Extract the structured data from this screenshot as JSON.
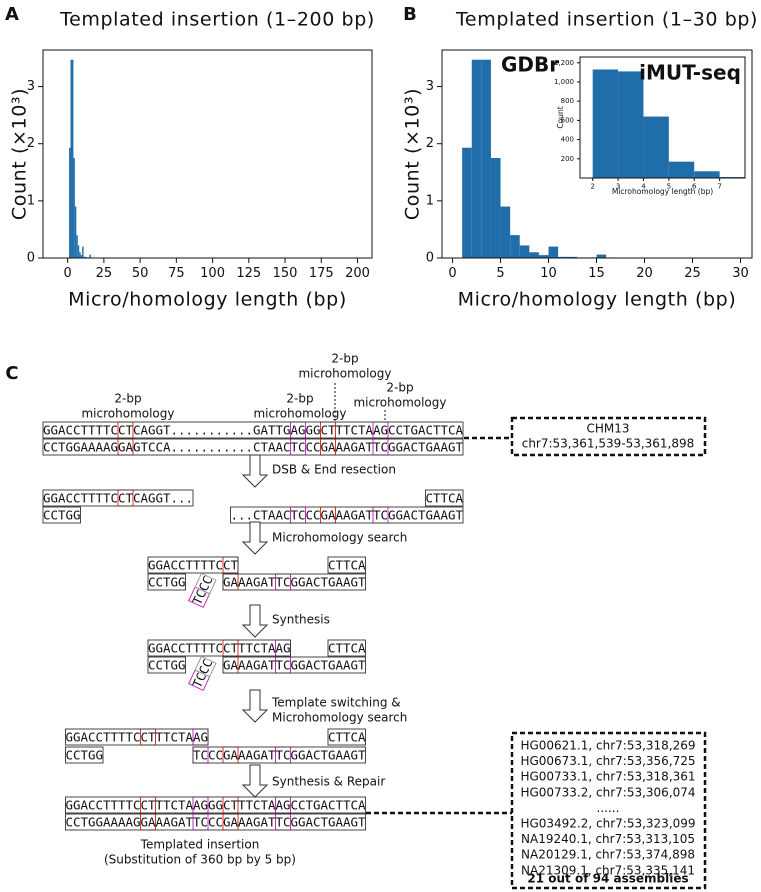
{
  "chart_data": [
    {
      "type": "histogram",
      "panel_label": "A",
      "title": "Templated insertion (1–200 bp)",
      "x_label": "Micro/homology length (bp)",
      "y_label": "Count (×10³)",
      "bins": [
        1,
        2,
        3,
        4,
        5,
        6,
        7,
        8,
        9,
        10,
        11,
        12,
        13,
        14,
        15,
        16,
        17
      ],
      "values": [
        1.93,
        3.47,
        3.47,
        1.75,
        0.9,
        0.4,
        0.22,
        0.1,
        0.05,
        0.2,
        0.02,
        0.02,
        0.01,
        0.01,
        0.06,
        0.01
      ],
      "color": "#1f6eaa",
      "xlim": [
        -17,
        210
      ],
      "ylim": [
        0,
        3.64
      ],
      "xticks": [
        0,
        25,
        50,
        75,
        100,
        125,
        150,
        175,
        200
      ],
      "yticks": [
        0,
        1,
        2,
        3
      ]
    },
    {
      "type": "histogram",
      "panel_label": "B",
      "title": "Templated insertion (1–30 bp)",
      "x_label": "Micro/homology length (bp)",
      "y_label": "Count (×10³)",
      "annotation": "GDBr",
      "bins": [
        1,
        2,
        3,
        4,
        5,
        6,
        7,
        8,
        9,
        10,
        11,
        12,
        13,
        14,
        15,
        16,
        17
      ],
      "values": [
        1.93,
        3.47,
        3.47,
        1.75,
        0.9,
        0.4,
        0.22,
        0.1,
        0.05,
        0.2,
        0.02,
        0.02,
        0.01,
        0.01,
        0.06,
        0.01
      ],
      "color": "#1f6eaa",
      "xlim": [
        -1.1,
        31.2
      ],
      "ylim": [
        0,
        3.64
      ],
      "xticks": [
        0,
        5,
        10,
        15,
        20,
        25,
        30
      ],
      "yticks": [
        0,
        1,
        2,
        3
      ]
    },
    {
      "type": "histogram",
      "title": "iMUT-seq",
      "x_label": "Microhomology length (bp)",
      "y_label": "Count",
      "bins": [
        2,
        3,
        4,
        5,
        6,
        7,
        8
      ],
      "values": [
        1130,
        1110,
        640,
        170,
        70,
        10
      ],
      "color": "#1f6eaa",
      "xlim": [
        1.5,
        8
      ],
      "ylim": [
        0,
        1260
      ],
      "xticks": [
        2,
        3,
        4,
        5,
        6,
        7
      ],
      "yticks": [
        200,
        400,
        600,
        800,
        {
          "value": 1000,
          "label": "1,000"
        },
        {
          "value": 1200,
          "label": "1,200"
        }
      ]
    }
  ],
  "diagram": {
    "panel_label": "C",
    "annotations": [
      {
        "lines": [
          "2-bp",
          "microhomology"
        ]
      },
      {
        "lines": [
          "2-bp",
          "microhomology"
        ]
      },
      {
        "lines": [
          "2-bp",
          "microhomology"
        ]
      },
      {
        "lines": [
          "2-bp",
          "microhomology"
        ]
      }
    ],
    "strands": [
      [
        {
          "text": "GGACCTTTTC",
          "color": "#111111"
        },
        {
          "text": "CT",
          "color": "#e0302a",
          "boxed": true
        },
        {
          "text": "CAGGT...........GATTG",
          "color": "#9a9a9a"
        },
        {
          "text": "AG",
          "color": "#c829c8",
          "boxed": true
        },
        {
          "text": "GG",
          "color": "#9a9a9a"
        },
        {
          "text": "CT",
          "color": "#e0302a",
          "boxed": true
        },
        {
          "text": "TTCTA",
          "color": "#1f8fd0"
        },
        {
          "text": "AG",
          "color": "#c829c8",
          "boxed": true
        },
        {
          "text": "CCTGACTTCA",
          "color": "#111111"
        }
      ],
      [
        {
          "text": "CCTGGAAAAG",
          "color": "#111111"
        },
        {
          "text": "GA",
          "color": "#e0302a",
          "boxed": true
        },
        {
          "text": "GTCCA...........CTAAC",
          "color": "#9a9a9a"
        },
        {
          "text": "TC",
          "color": "#c829c8",
          "boxed": true
        },
        {
          "text": "CC",
          "color": "#9a9a9a"
        },
        {
          "text": "GA",
          "color": "#e0302a",
          "boxed": true
        },
        {
          "text": "AAGAT",
          "color": "#1f8fd0"
        },
        {
          "text": "TC",
          "color": "#c829c8",
          "boxed": true
        },
        {
          "text": "GGACTGAAGT",
          "color": "#111111"
        }
      ],
      [
        {
          "text": "GGACCTTTTC",
          "color": "#111111"
        },
        {
          "text": "CT",
          "color": "#e0302a",
          "boxed": true
        },
        {
          "text": "CAGGT...",
          "color": "#9a9a9a"
        }
      ],
      [
        {
          "text": "CTTCA",
          "color": "#111111"
        }
      ],
      [
        {
          "text": "CCTGG",
          "color": "#111111"
        }
      ],
      [
        {
          "text": "...CTAAC",
          "color": "#9a9a9a"
        },
        {
          "text": "TC",
          "color": "#c829c8",
          "boxed": true
        },
        {
          "text": "CC",
          "color": "#9a9a9a"
        },
        {
          "text": "GA",
          "color": "#e0302a",
          "boxed": true
        },
        {
          "text": "AAGAT",
          "color": "#1f8fd0"
        },
        {
          "text": "TC",
          "color": "#c829c8",
          "boxed": true
        },
        {
          "text": "GGACTGAAGT",
          "color": "#111111"
        }
      ],
      [
        {
          "text": "GGACCTTTTC",
          "color": "#111111"
        },
        {
          "text": "CT",
          "color": "#e0302a",
          "boxed": true
        }
      ],
      [
        {
          "text": "CTTCA",
          "color": "#111111"
        }
      ],
      [
        {
          "text": "CCTGG",
          "color": "#111111"
        }
      ],
      [
        {
          "text": "GA",
          "color": "#e0302a",
          "boxed": true
        },
        {
          "text": "AAGAT",
          "color": "#1f8fd0"
        },
        {
          "text": "TC",
          "color": "#c829c8",
          "boxed": true
        },
        {
          "text": "GGACTGAAGT",
          "color": "#111111"
        }
      ],
      [
        {
          "text": "TC",
          "color": "#c829c8",
          "boxed": true
        },
        {
          "text": "CC",
          "color": "#9a9a9a",
          "boxed": true
        }
      ],
      [
        {
          "text": "GGACCTTTTC",
          "color": "#111111"
        },
        {
          "text": "CT",
          "color": "#e0302a",
          "boxed": true
        },
        {
          "text": "TTCTA",
          "color": "#1f8fd0"
        },
        {
          "text": "AG",
          "color": "#c829c8",
          "boxed": true
        }
      ],
      [
        {
          "text": "CTTCA",
          "color": "#111111"
        }
      ],
      [
        {
          "text": "CCTGG",
          "color": "#111111"
        }
      ],
      [
        {
          "text": "GA",
          "color": "#e0302a",
          "boxed": true
        },
        {
          "text": "AAGAT",
          "color": "#1f8fd0"
        },
        {
          "text": "TC",
          "color": "#c829c8",
          "boxed": true
        },
        {
          "text": "GGACTGAAGT",
          "color": "#111111"
        }
      ],
      [
        {
          "text": "TC",
          "color": "#c829c8",
          "boxed": true
        },
        {
          "text": "CC",
          "color": "#9a9a9a",
          "boxed": true
        }
      ],
      [
        {
          "text": "GGACCTTTTC",
          "color": "#111111"
        },
        {
          "text": "CT",
          "color": "#e0302a",
          "boxed": true
        },
        {
          "text": "TTCTA",
          "color": "#1f8fd0"
        },
        {
          "text": "AG",
          "color": "#c829c8",
          "boxed": true
        }
      ],
      [
        {
          "text": "CTTCA",
          "color": "#111111"
        }
      ],
      [
        {
          "text": "CCTGG",
          "color": "#111111"
        }
      ],
      [
        {
          "text": "TC",
          "color": "#c829c8",
          "boxed": true
        },
        {
          "text": "CC",
          "color": "#9a9a9a"
        },
        {
          "text": "GA",
          "color": "#e0302a",
          "boxed": true
        },
        {
          "text": "AAGAT",
          "color": "#1f8fd0"
        },
        {
          "text": "TC",
          "color": "#c829c8",
          "boxed": true
        },
        {
          "text": "GGACTGAAGT",
          "color": "#111111"
        }
      ],
      [
        {
          "text": "GGACCTTTTC",
          "color": "#111111"
        },
        {
          "text": "CT",
          "color": "#e0302a",
          "boxed": true
        },
        {
          "text": "TTCTA",
          "color": "#1f8fd0"
        },
        {
          "text": "AG",
          "color": "#c829c8",
          "boxed": true
        },
        {
          "text": "GG",
          "color": "#9a9a9a"
        },
        {
          "text": "CT",
          "color": "#e0302a",
          "boxed": true
        },
        {
          "text": "TTCTA",
          "color": "#1f8fd0"
        },
        {
          "text": "AG",
          "color": "#c829c8",
          "boxed": true
        },
        {
          "text": "CCTGACTTCA",
          "color": "#111111"
        }
      ],
      [
        {
          "text": "CCTGGAAAAG",
          "color": "#111111"
        },
        {
          "text": "GA",
          "color": "#e0302a",
          "boxed": true
        },
        {
          "text": "AAGAT",
          "color": "#1f8fd0"
        },
        {
          "text": "TC",
          "color": "#c829c8",
          "boxed": true
        },
        {
          "text": "CC",
          "color": "#9a9a9a"
        },
        {
          "text": "GA",
          "color": "#e0302a",
          "boxed": true
        },
        {
          "text": "AAGAT",
          "color": "#1f8fd0"
        },
        {
          "text": "TC",
          "color": "#c829c8",
          "boxed": true
        },
        {
          "text": "GGACTGAAGT",
          "color": "#111111"
        }
      ]
    ],
    "steps": [
      {
        "lines": [
          "DSB & End resection"
        ]
      },
      {
        "lines": [
          "Microhomology search"
        ]
      },
      {
        "lines": [
          "Synthesis"
        ]
      },
      {
        "lines": [
          "Template switching &",
          "Microhomology search"
        ]
      },
      {
        "lines": [
          "Synthesis & Repair"
        ]
      }
    ],
    "reference": {
      "lines": [
        "CHM13",
        "chr7:53,361,539-53,361,898"
      ]
    },
    "assemblies": {
      "lines": [
        "HG00621.1, chr7:53,318,269",
        "HG00673.1, chr7:53,356,725",
        "HG00733.1, chr7:53,318,361",
        "HG00733.2, chr7:53,306,074",
        "......",
        "HG03492.2, chr7:53,323,099",
        "NA19240.1, chr7:53,313,105",
        "NA20129.1, chr7:53,374,898",
        "NA21309.1, chr7:53,335,141"
      ],
      "summary": "21 out of 94 assemblies"
    },
    "caption": [
      "Templated insertion",
      "(Substitution of 360 bp by 5 bp)"
    ]
  }
}
